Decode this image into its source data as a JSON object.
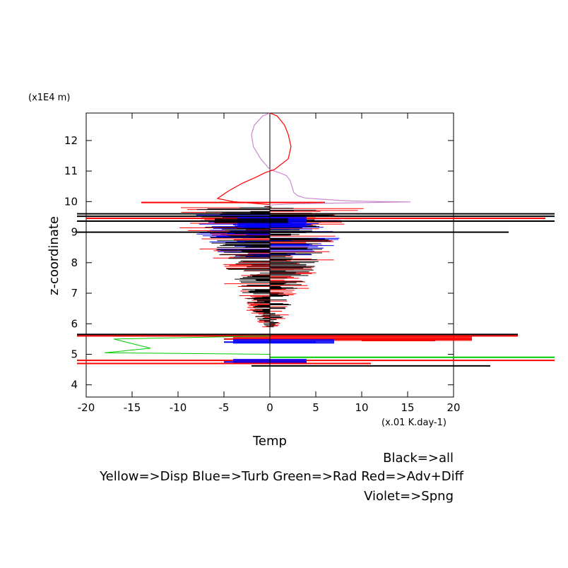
{
  "chart_data": {
    "type": "line",
    "title": "",
    "xlabel": "Temp",
    "xunit": "(x.01 K.day-1)",
    "ylabel": "z-coordinate",
    "yunit": "(x1E4 m)",
    "xlim": [
      -20,
      20
    ],
    "ylim": [
      3.6,
      12.9
    ],
    "xticks": [
      -20,
      -15,
      -10,
      -5,
      0,
      5,
      10,
      15,
      20
    ],
    "yticks": [
      4,
      5,
      6,
      7,
      8,
      9,
      10,
      11,
      12
    ],
    "xtick_labels": [
      "-20",
      "-15",
      "-10",
      "-5",
      "0",
      "5",
      "10",
      "15",
      "20"
    ],
    "ytick_labels": [
      "4",
      "5",
      "6",
      "7",
      "8",
      "9",
      "10",
      "11",
      "12"
    ],
    "legend": [
      "Black=>all",
      "Yellow=>Disp Blue=>Turb Green=>Rad Red=>Adv+Diff",
      "Violet=>Spng"
    ],
    "series": [
      {
        "color": "#cc88cc",
        "x": [
          0,
          -0.8,
          -1.7,
          -2,
          -1.8,
          -1,
          0,
          1,
          1.8,
          2.2,
          2.4,
          2.6,
          3,
          3.8,
          5.5,
          7.5,
          9,
          12,
          15.3,
          9,
          3,
          0.5,
          0
        ],
        "y": [
          12.9,
          12.8,
          12.5,
          12.2,
          11.8,
          11.4,
          11.05,
          10.95,
          10.85,
          10.7,
          10.5,
          10.3,
          10.2,
          10.12,
          10.08,
          10.04,
          10.02,
          10.0,
          9.99,
          9.96,
          9.93,
          9.9,
          9.88
        ]
      },
      {
        "color": "#ff0000",
        "x": [
          0,
          0.8,
          1.6,
          2,
          2.3,
          2,
          0.5,
          -0.5,
          -1.5,
          -3,
          -4.5,
          -5.7,
          -4,
          -2,
          0
        ],
        "y": [
          12.9,
          12.8,
          12.5,
          12.2,
          11.8,
          11.4,
          11.05,
          10.95,
          10.8,
          10.6,
          10.35,
          10.1,
          10.0,
          9.95,
          9.9
        ]
      }
    ]
  }
}
